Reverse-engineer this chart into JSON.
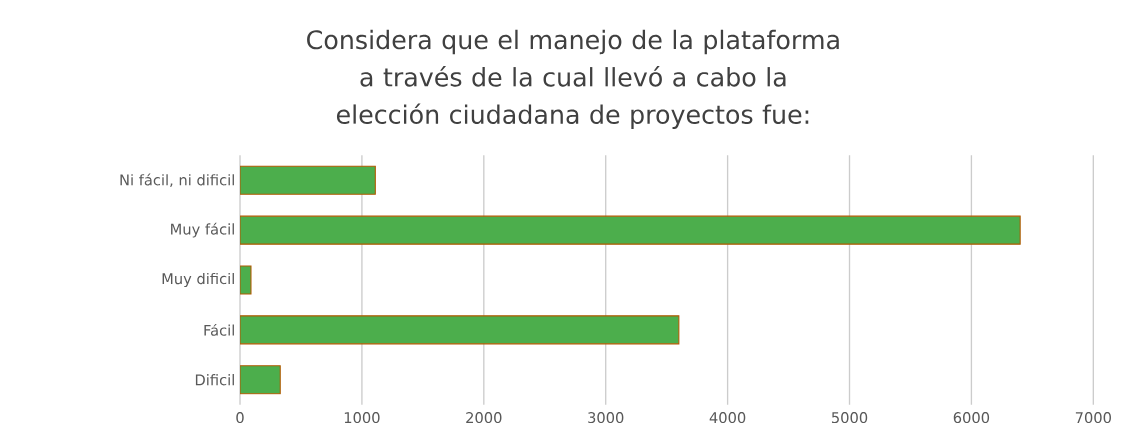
{
  "chart_data": {
    "type": "bar",
    "orientation": "horizontal",
    "title": "Considera que el manejo de la plataforma a través de la cual llevó a cabo la elección ciudadana de proyectos fue:",
    "categories": [
      "Ni fácil, ni dificil",
      "Muy fácil",
      "Muy dificil",
      "Fácil",
      "Dificil"
    ],
    "values": [
      1110,
      6400,
      90,
      3600,
      330
    ],
    "color": "#4cae4c",
    "xlim": [
      0,
      7000
    ],
    "xticks": [
      0,
      1000,
      2000,
      3000,
      4000,
      5000,
      6000,
      7000
    ],
    "grid": "x"
  }
}
